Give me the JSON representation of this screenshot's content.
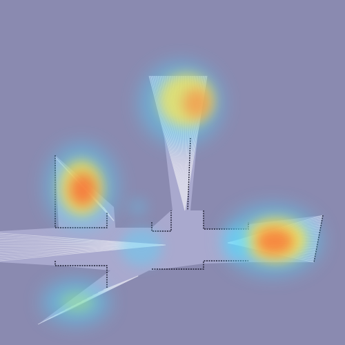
{
  "colors": {
    "background": "#8a8ab0",
    "free_space": "#ababd0",
    "wall": "#1a1a2e",
    "ray": "#ffffff",
    "heat_low": "#4fd8ff",
    "heat_mid": "#ffe84a",
    "heat_high": "#ff5a2a"
  },
  "heatmap": {
    "colormap": "jet",
    "hotspots": [
      {
        "id": "north-beam",
        "intensity": 0.75
      },
      {
        "id": "west-upper",
        "intensity": 0.95
      },
      {
        "id": "east",
        "intensity": 0.95
      },
      {
        "id": "center",
        "intensity": 0.3
      },
      {
        "id": "southwest",
        "intensity": 0.45
      }
    ]
  }
}
